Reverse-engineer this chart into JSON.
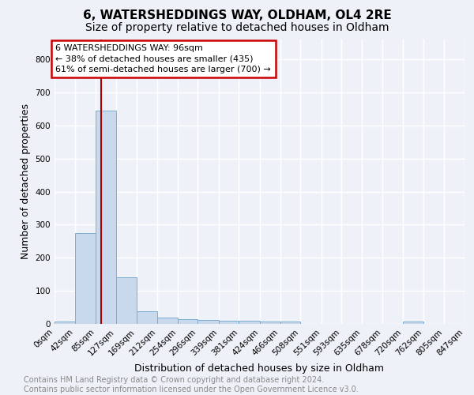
{
  "title1": "6, WATERSHEDDINGS WAY, OLDHAM, OL4 2RE",
  "title2": "Size of property relative to detached houses in Oldham",
  "xlabel": "Distribution of detached houses by size in Oldham",
  "ylabel": "Number of detached properties",
  "bin_edges": [
    0,
    42,
    85,
    127,
    169,
    212,
    254,
    296,
    339,
    381,
    424,
    466,
    508,
    551,
    593,
    635,
    678,
    720,
    762,
    805,
    847
  ],
  "bar_heights": [
    8,
    275,
    645,
    140,
    38,
    20,
    14,
    12,
    10,
    10,
    8,
    8,
    0,
    0,
    0,
    0,
    0,
    8,
    0,
    0
  ],
  "bar_color": "#c8d9ee",
  "bar_edgecolor": "#7aadd4",
  "property_size": 96,
  "vline_color": "#aa0000",
  "annotation_text": "6 WATERSHEDDINGS WAY: 96sqm\n← 38% of detached houses are smaller (435)\n61% of semi-detached houses are larger (700) →",
  "annotation_box_color": "#cc0000",
  "ylim": [
    0,
    860
  ],
  "yticks": [
    0,
    100,
    200,
    300,
    400,
    500,
    600,
    700,
    800
  ],
  "tick_labels": [
    "0sqm",
    "42sqm",
    "85sqm",
    "127sqm",
    "169sqm",
    "212sqm",
    "254sqm",
    "296sqm",
    "339sqm",
    "381sqm",
    "424sqm",
    "466sqm",
    "508sqm",
    "551sqm",
    "593sqm",
    "635sqm",
    "678sqm",
    "720sqm",
    "762sqm",
    "805sqm",
    "847sqm"
  ],
  "background_color": "#eef2f8",
  "plot_bg_color": "#eef2f8",
  "grid_color": "#ffffff",
  "footer_text": "Contains HM Land Registry data © Crown copyright and database right 2024.\nContains public sector information licensed under the Open Government Licence v3.0.",
  "title1_fontsize": 11,
  "title2_fontsize": 10,
  "xlabel_fontsize": 9,
  "ylabel_fontsize": 9,
  "tick_fontsize": 7.5,
  "footer_fontsize": 7,
  "annotation_fontsize": 8
}
